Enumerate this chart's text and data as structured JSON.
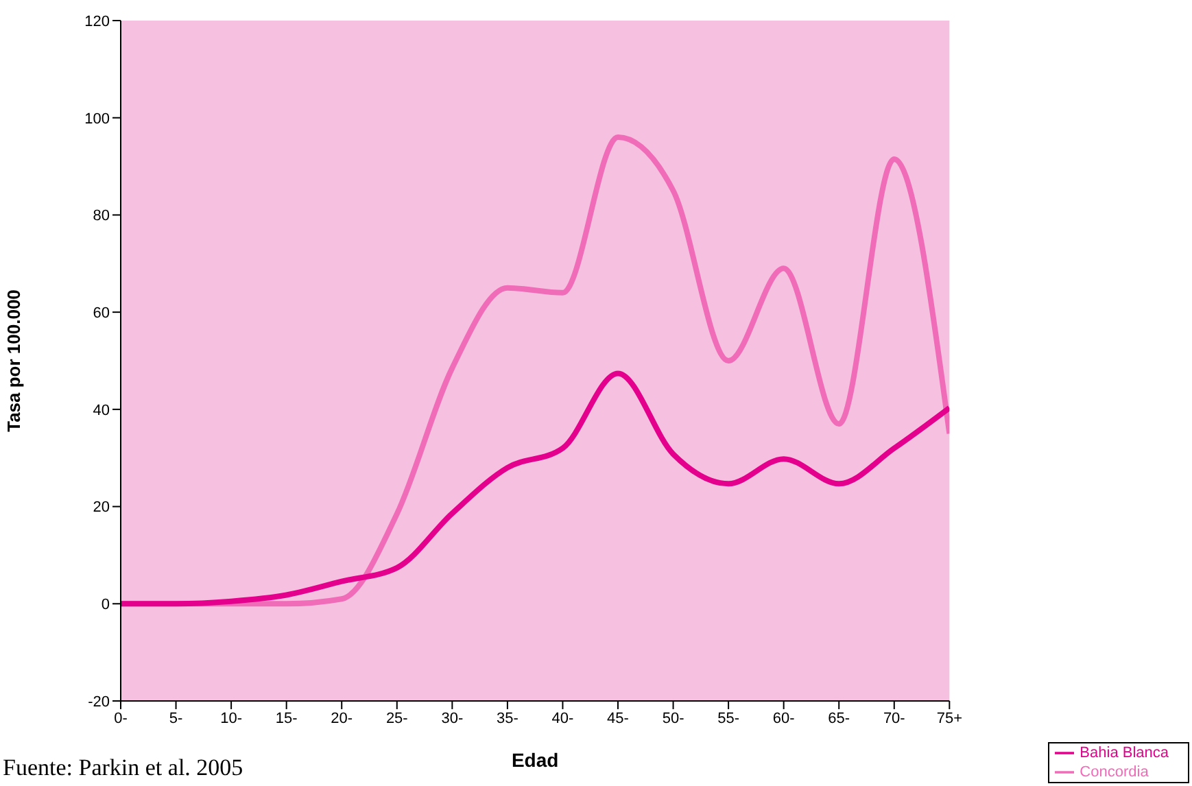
{
  "chart_data": {
    "type": "line",
    "xlabel": "Edad",
    "ylabel": "Tasa por 100.000",
    "categories": [
      "0-",
      "5-",
      "10-",
      "15-",
      "20-",
      "25-",
      "30-",
      "35-",
      "40-",
      "45-",
      "50-",
      "55-",
      "60-",
      "65-",
      "70-",
      "75+"
    ],
    "series": [
      {
        "name": "Concordia",
        "color": "#f06cb8",
        "values": [
          0,
          0,
          0,
          0,
          1,
          18.5,
          48.5,
          65,
          64,
          96,
          85,
          50,
          69,
          37,
          91.5,
          35
        ]
      },
      {
        "name": "Bahia Blanca",
        "color": "#e4008c",
        "values": [
          0,
          0,
          0.5,
          1.8,
          4.6,
          7.4,
          18.6,
          28,
          32,
          47.4,
          30.8,
          24.7,
          29.8,
          24.7,
          32,
          40.3
        ]
      }
    ],
    "ylim": [
      -20,
      120
    ],
    "yticks": [
      -20,
      0,
      20,
      40,
      60,
      80,
      100,
      120
    ],
    "grid": false,
    "legend": "bottom right",
    "marker": "none",
    "line_style": "solid",
    "annotations": [
      "Fuente: Parkin et al. 2005"
    ]
  }
}
